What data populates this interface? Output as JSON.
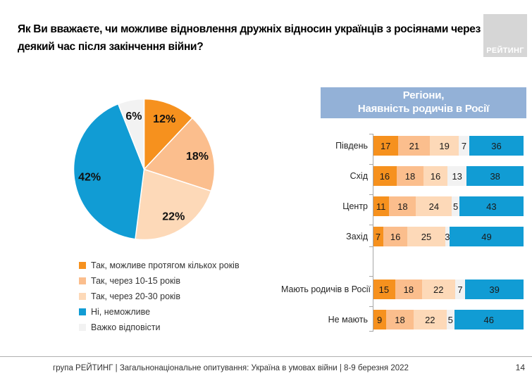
{
  "title": "Як Ви вважаєте, чи можливе відновлення дружніх відносин українців з росіянами через деякий час після закінчення війни?",
  "logo": {
    "text": "РЕЙТИНГ"
  },
  "chart_data": [
    {
      "type": "pie",
      "labels": [
        "Так, можливе протягом кількох років",
        "Так, через 10-15 років",
        "Так, через 20-30 років",
        "Ні, неможливе",
        "Важко відповісти"
      ],
      "values": [
        12,
        18,
        22,
        42,
        6
      ],
      "value_labels": [
        "12%",
        "18%",
        "22%",
        "42%",
        "6%"
      ],
      "colors": [
        "#f6911e",
        "#fbbe8d",
        "#fdd9b8",
        "#119cd4",
        "#f2f2f2"
      ],
      "legend_position": "bottom-left",
      "start_angle_deg": -90,
      "direction": "clockwise"
    },
    {
      "type": "stacked-bar-horizontal",
      "title_lines": [
        "Регіони,",
        "Наявність родичів в Росії"
      ],
      "title_bg": "#93b1d7",
      "title_color": "#ffffff",
      "series_names": [
        "Так, можливе протягом кількох років",
        "Так, через 10-15 років",
        "Так, через 20-30 років",
        "Важко відповісти",
        "Ні, неможливе"
      ],
      "colors": [
        "#f6911e",
        "#fbbe8d",
        "#fdd9b8",
        "#f2f2f2",
        "#119cd4"
      ],
      "xlim": [
        0,
        100
      ],
      "groups": [
        {
          "categories": [
            "Південь",
            "Схід",
            "Центр",
            "Захід"
          ],
          "rows": [
            [
              17,
              21,
              19,
              7,
              36
            ],
            [
              16,
              18,
              16,
              13,
              38
            ],
            [
              11,
              18,
              24,
              5,
              43
            ],
            [
              7,
              16,
              25,
              3,
              49
            ]
          ]
        },
        {
          "categories": [
            "Мають родичів в Росії",
            "Не мають"
          ],
          "rows": [
            [
              15,
              18,
              22,
              7,
              39
            ],
            [
              9,
              18,
              22,
              5,
              46
            ]
          ]
        }
      ]
    }
  ],
  "footer": {
    "text": "група РЕЙТИНГ | Загальнонаціональне опитування: Україна в умовах війни | 8-9 березня 2022",
    "page": "14"
  }
}
